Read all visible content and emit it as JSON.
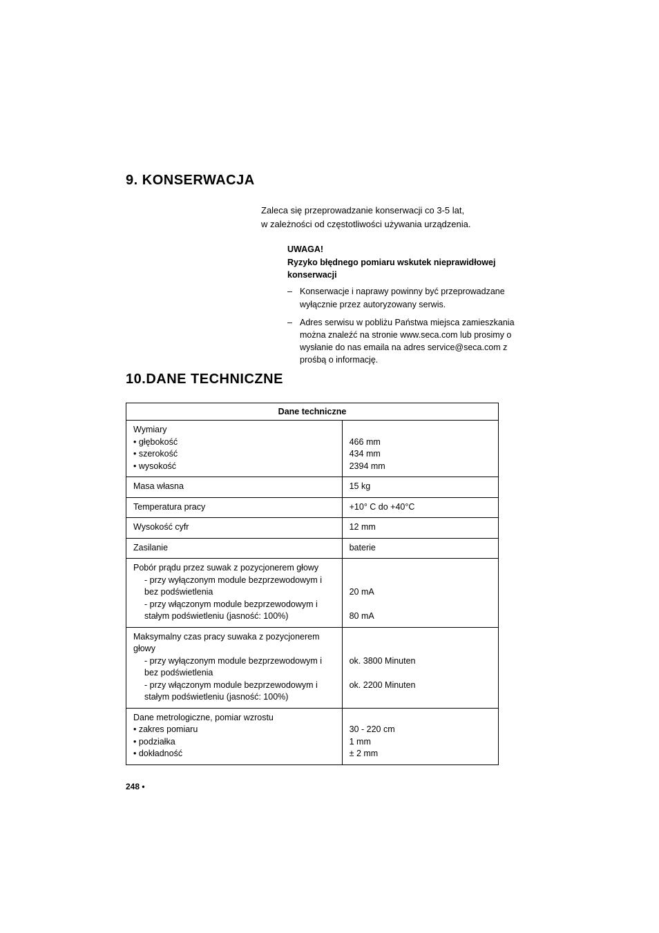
{
  "section9": {
    "number": "9.",
    "title": "KONSERWACJA",
    "intro1": "Zaleca się przeprowadzanie konserwacji co 3-5 lat,",
    "intro2": "w zależności od częstotliwości używania urządzenia.",
    "warning_title": "UWAGA!",
    "warning_sub": "Ryzyko błędnego pomiaru wskutek nieprawidłowej konserwacji",
    "warning_items": [
      "Konserwacje i naprawy powinny być przeprowadzane wyłącznie przez autoryzowany serwis.",
      "Adres serwisu w pobliżu Państwa miejsca zamieszkania można znaleźć na stronie www.seca.com lub prosimy o wysłanie do nas emaila na adres service@seca.com z prośbą o informację."
    ]
  },
  "section10": {
    "number": "10.",
    "title": "DANE TECHNICZNE",
    "table_header": "Dane techniczne",
    "rows": [
      {
        "l": "Wymiary<br>• głębokość<br>• szerokość<br>• wysokość",
        "r": "<br>466 mm<br>434 mm<br>2394 mm"
      },
      {
        "l": "Masa własna",
        "r": "15 kg"
      },
      {
        "l": "Temperatura pracy",
        "r": "+10° C do +40°C"
      },
      {
        "l": "Wysokość cyfr",
        "r": "12 mm"
      },
      {
        "l": "Zasilanie",
        "r": "baterie"
      },
      {
        "l": "Pobór prądu przez suwak z pozycjonerem głowy<br><span class=\"sub-indent\">- przy wyłączonym module bezprzewo­dowym i bez podświetlenia</span><span class=\"sub-indent\">- przy włączonym module bezprzewodowym i stałym podświetleniu (jasność: 100%)</span>",
        "r": "<br><br>20 mA<br><br>80 mA"
      },
      {
        "l": "Maksymalny czas pracy suwaka z&nbsp;pozycjonerem głowy<br><span class=\"sub-indent\">- przy wyłączonym module bezprzewo­dowym i bez podświetlenia</span><span class=\"sub-indent\">- przy włączonym module bezprzewodowym i stałym podświetleniu (jasność: 100%)</span>",
        "r": "<br><br>ok. 3800 Minuten<br><br>ok. 2200 Minuten"
      },
      {
        "l": "Dane metrologiczne, pomiar wzrostu<br>• zakres pomiaru<br>• podziałka<br>• dokładność",
        "r": "<br>30 -  220 cm<br>1 mm<br>± 2 mm"
      }
    ]
  },
  "page_number": "248 •"
}
